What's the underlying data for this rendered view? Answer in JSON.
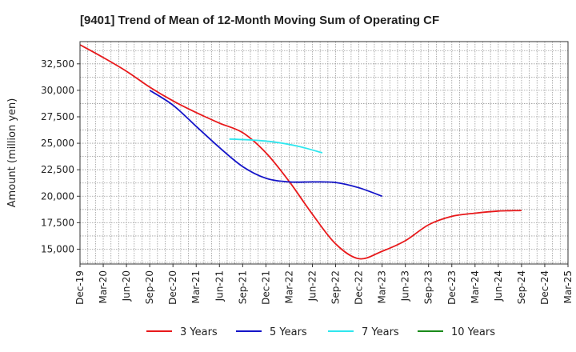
{
  "chart_data": {
    "type": "line",
    "title": "[9401]  Trend of Mean of 12-Month Moving Sum of Operating CF",
    "xlabel": "",
    "ylabel": "Amount (million yen)",
    "ylim": [
      13600,
      34600
    ],
    "yticks": [
      15000,
      17500,
      20000,
      22500,
      25000,
      27500,
      30000,
      32500
    ],
    "ytick_labels": [
      "15,000",
      "17,500",
      "20,000",
      "22,500",
      "25,000",
      "27,500",
      "30,000",
      "32,500"
    ],
    "xtick_labels": [
      "Dec-19",
      "Mar-20",
      "Jun-20",
      "Sep-20",
      "Dec-20",
      "Mar-21",
      "Jun-21",
      "Sep-21",
      "Dec-21",
      "Mar-22",
      "Jun-22",
      "Sep-22",
      "Dec-22",
      "Mar-23",
      "Jun-23",
      "Sep-23",
      "Dec-23",
      "Mar-24",
      "Jun-24",
      "Sep-24",
      "Dec-24",
      "Mar-25"
    ],
    "grid": true,
    "legend_position": "bottom",
    "series": [
      {
        "name": "3 Years",
        "color": "#e8191b",
        "start_index": 0,
        "values": [
          34300,
          33100,
          31800,
          30300,
          29000,
          27900,
          26900,
          26000,
          24100,
          21400,
          18300,
          15500,
          14100,
          14800,
          15800,
          17300,
          18100,
          18400,
          18600,
          18650
        ]
      },
      {
        "name": "5 Years",
        "color": "#1414c8",
        "start_index": 63,
        "values": [
          30000,
          28600,
          26600,
          24600,
          22800,
          21700,
          21350,
          21350,
          21300,
          20800,
          20000
        ]
      },
      {
        "name": "7 Years",
        "color": "#2fe6ee",
        "start_index": 135,
        "values": [
          25400,
          25300,
          25100,
          24700,
          24100
        ]
      },
      {
        "name": "10 Years",
        "color": "#1a8a1a",
        "start_index": null,
        "values": []
      }
    ]
  }
}
